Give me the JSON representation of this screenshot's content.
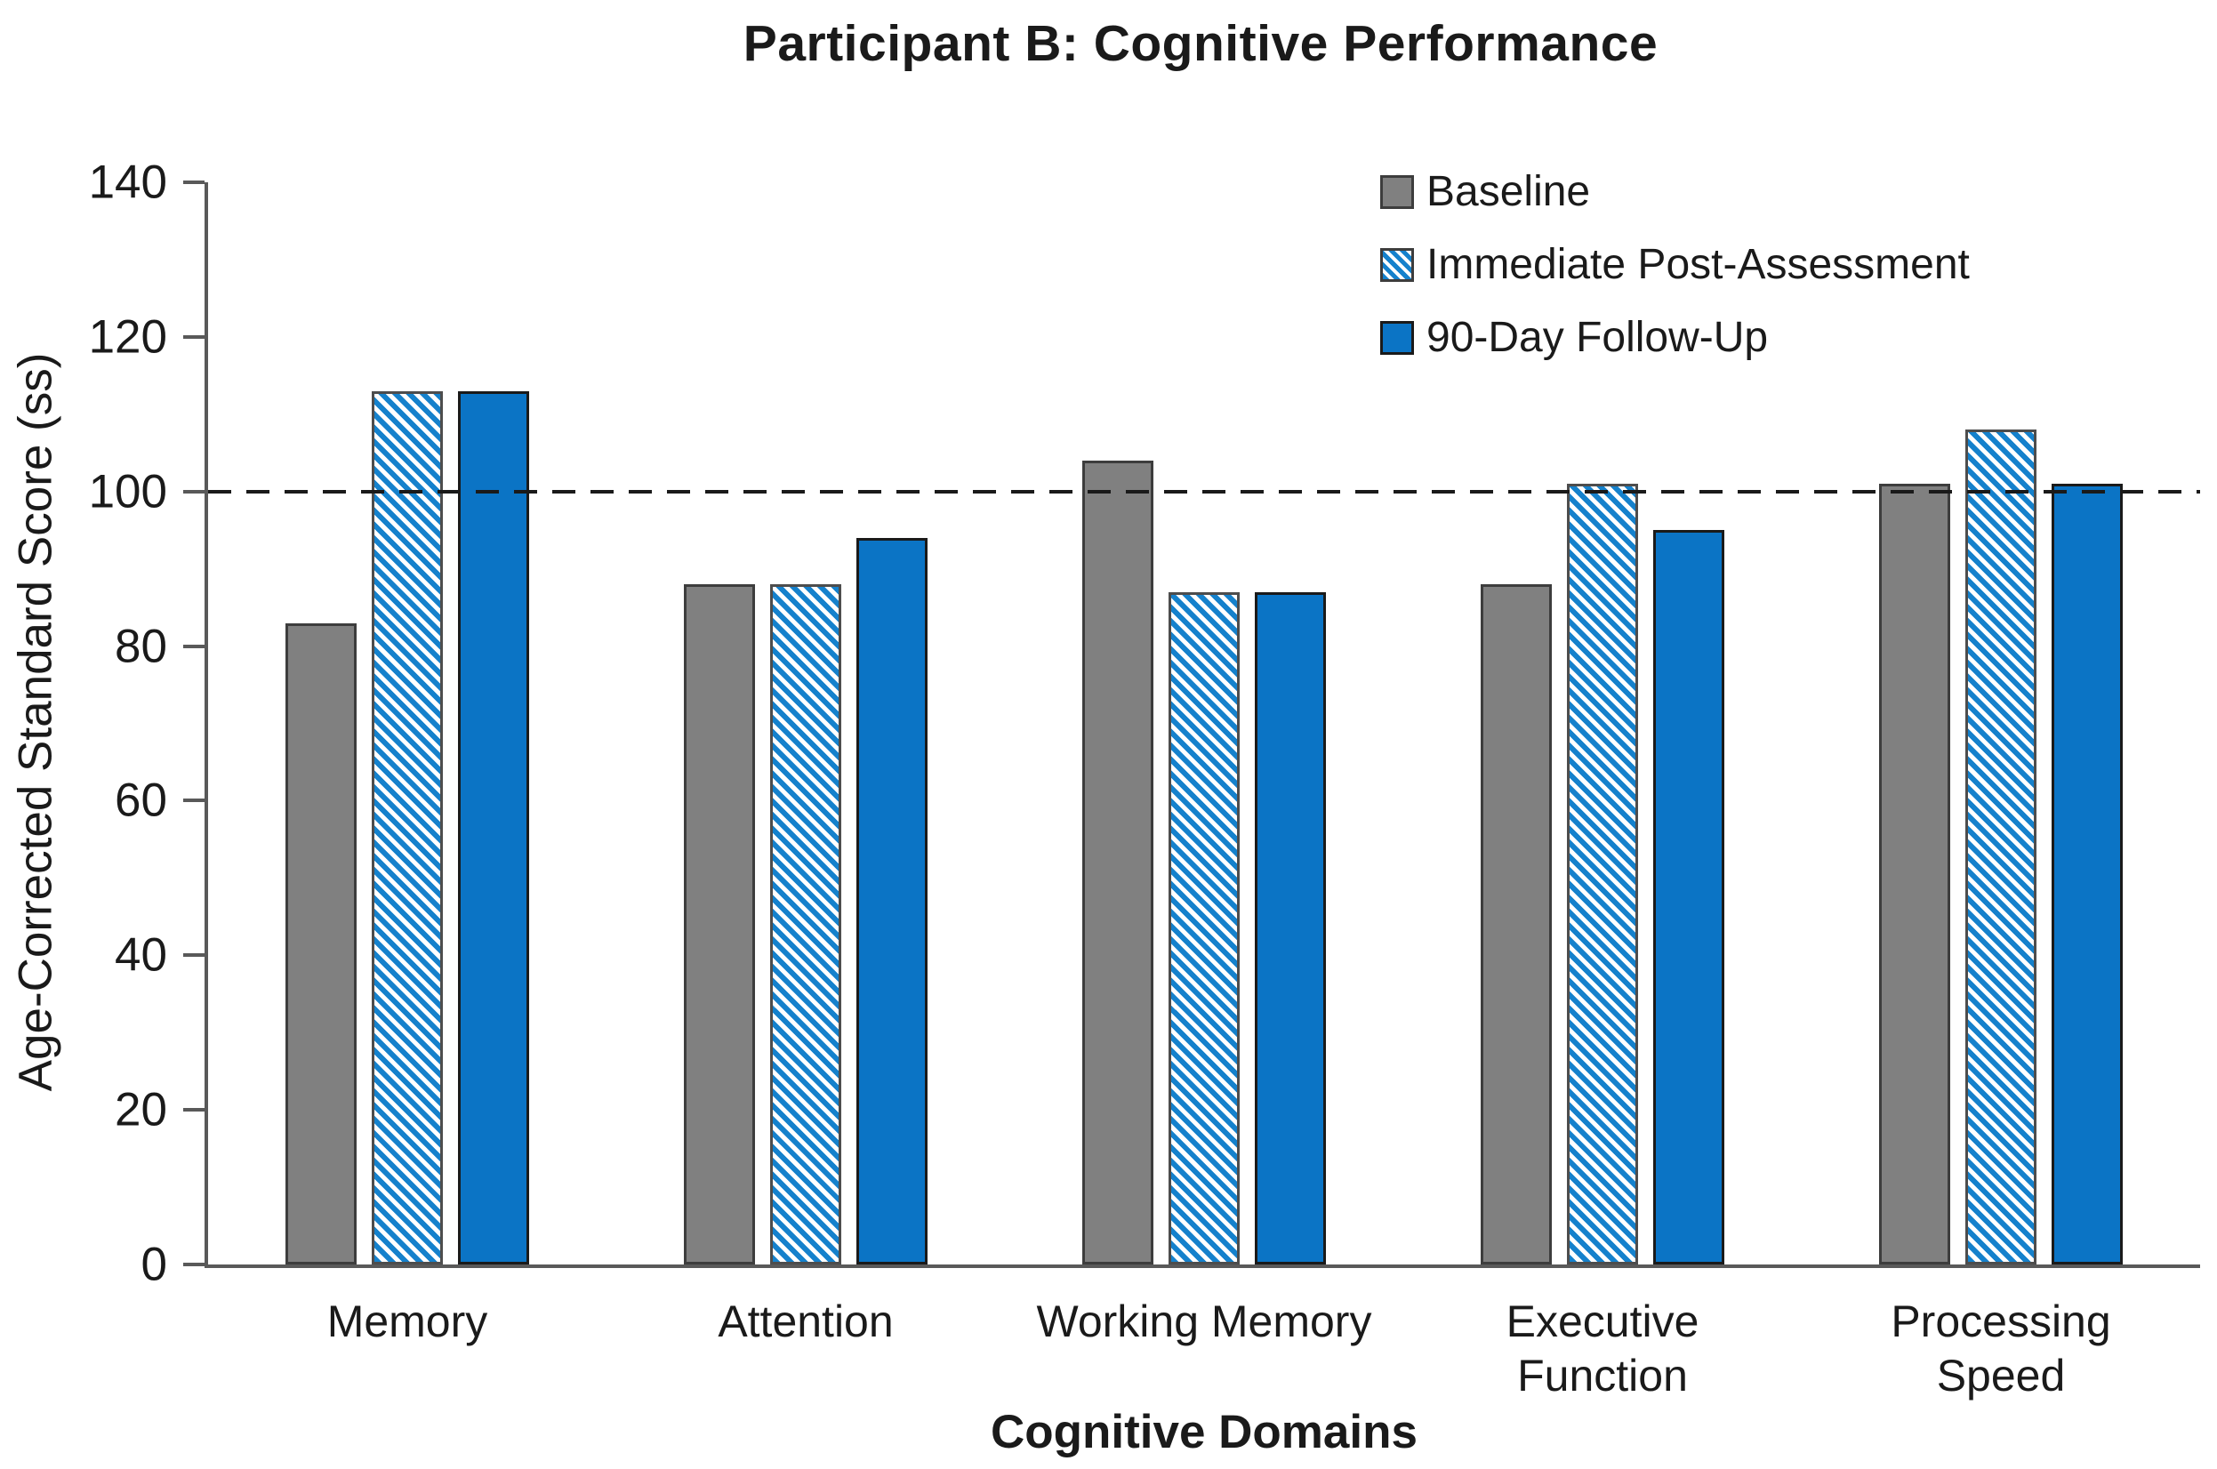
{
  "chart_data": {
    "type": "bar",
    "title": "Participant B: Cognitive Performance",
    "xlabel": "Cognitive Domains",
    "ylabel": "Age-Corrected Standard Score (ss)",
    "ylim": [
      0,
      140
    ],
    "yticks": [
      0,
      20,
      40,
      60,
      80,
      100,
      120,
      140
    ],
    "reference_line": 100,
    "grid": "off",
    "legend_position": "upper-right",
    "categories": [
      "Memory",
      "Attention",
      "Working Memory",
      "Executive Function",
      "Processing Speed"
    ],
    "category_lines": [
      [
        "Memory"
      ],
      [
        "Attention"
      ],
      [
        "Working Memory"
      ],
      [
        "Executive",
        "Function"
      ],
      [
        "Processing",
        "Speed"
      ]
    ],
    "series": [
      {
        "name": "Baseline",
        "style": "solid-gray",
        "values": [
          83,
          88,
          104,
          88,
          101
        ]
      },
      {
        "name": "Immediate Post-Assessment",
        "style": "hatched-blue",
        "values": [
          113,
          88,
          87,
          101,
          108
        ]
      },
      {
        "name": "90-Day Follow-Up",
        "style": "solid-blue",
        "values": [
          113,
          94,
          87,
          95,
          101
        ]
      }
    ],
    "colors": {
      "baseline_gray": "#808080",
      "follow_up_blue": "#0b74c5",
      "hatch_stripe_blue": "#1581cc",
      "axis_gray": "#595959",
      "text_black": "#1a1a1a"
    }
  }
}
